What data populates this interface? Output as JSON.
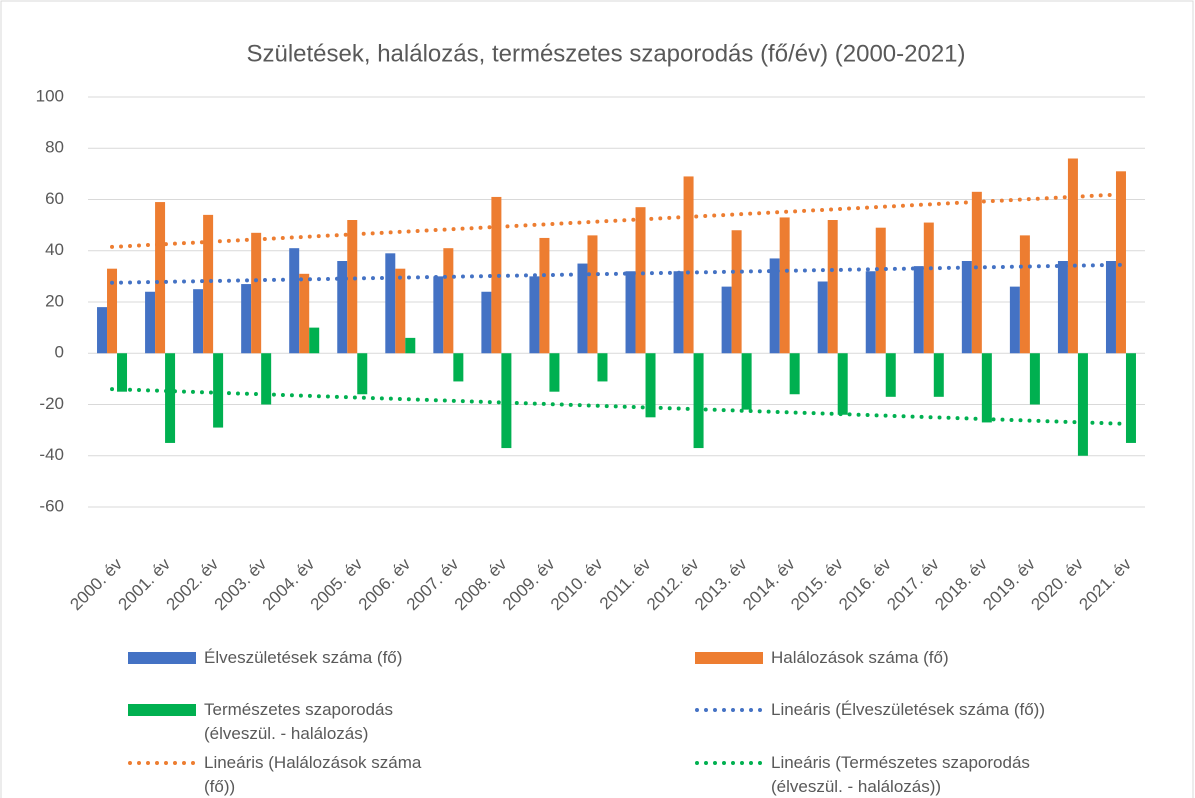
{
  "chart_data": {
    "type": "bar",
    "title": "Születések, halálozás, természetes szaporodás (fő/év) (2000-2021)",
    "categories": [
      "2000. év",
      "2001. év",
      "2002. év",
      "2003. év",
      "2004. év",
      "2005. év",
      "2006. év",
      "2007. év",
      "2008. év",
      "2009. év",
      "2010. év",
      "2011. év",
      "2012. év",
      "2013. év",
      "2014. év",
      "2015. év",
      "2016. év",
      "2017. év",
      "2018. év",
      "2019. év",
      "2020. év",
      "2021. év"
    ],
    "series": [
      {
        "name": "Élveszületések száma (fő)",
        "color": "#4472c4",
        "values": [
          18,
          24,
          25,
          27,
          41,
          36,
          39,
          30,
          24,
          30,
          35,
          32,
          32,
          26,
          37,
          28,
          32,
          34,
          36,
          26,
          36,
          36
        ]
      },
      {
        "name": "Halálozások száma (fő)",
        "color": "#ed7d31",
        "values": [
          33,
          59,
          54,
          47,
          31,
          52,
          33,
          41,
          61,
          45,
          46,
          57,
          69,
          48,
          53,
          52,
          49,
          51,
          63,
          46,
          76,
          71
        ]
      },
      {
        "name": "Természetes szaporodás (élveszül. - halálozás)",
        "color": "#00b050",
        "values": [
          -15,
          -35,
          -29,
          -20,
          10,
          -16,
          6,
          -11,
          -37,
          -15,
          -11,
          -25,
          -37,
          -22,
          -16,
          -24,
          -17,
          -17,
          -27,
          -20,
          -40,
          -35
        ]
      }
    ],
    "trendlines": [
      {
        "name": "Lineáris (Élveszületések száma (fő))",
        "color": "#4472c4",
        "values": [
          27.5,
          34.5
        ]
      },
      {
        "name": "Lineáris (Halálozások száma (fő))",
        "color": "#ed7d31",
        "values": [
          41.5,
          62
        ]
      },
      {
        "name": "Lineáris (Természetes szaporodás (élveszül. - halálozás))",
        "color": "#00b050",
        "values": [
          -14,
          -27.5
        ]
      }
    ],
    "ylim": [
      -60,
      100
    ],
    "yticks": [
      -60,
      -40,
      -20,
      0,
      20,
      40,
      60,
      80,
      100
    ],
    "grid": true
  }
}
